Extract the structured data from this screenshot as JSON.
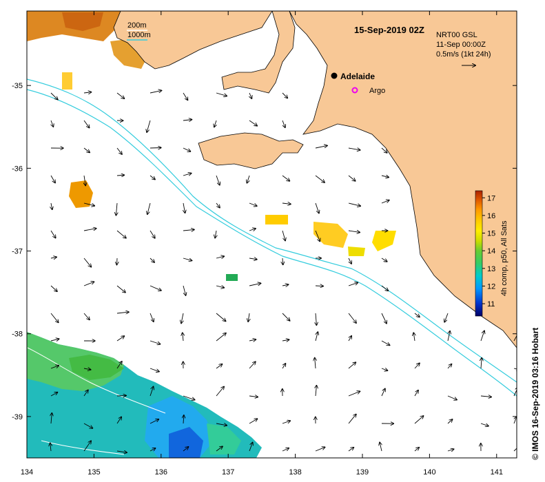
{
  "map": {
    "title": "15-Sep-2019 02Z",
    "product": "NRT00 GSL",
    "current_time": "11-Sep 00:00Z",
    "vector_scale": "0.5m/s (1kt 24h)",
    "credit": "© IMOS 16-Sep-2019 03:16 Hobart",
    "bathymetry_legend": {
      "contour_200_label": "200m",
      "contour_1000_label": "1000m",
      "contour_200_color": "#ffffff",
      "contour_1000_color": "#33ccdd"
    },
    "land_color": "#f8c896",
    "places": [
      {
        "name": "Adelaide",
        "lon": 138.6,
        "lat": -34.9,
        "marker": "filled-dot"
      },
      {
        "name": "Argo",
        "lon": 138.85,
        "lat": -35.09,
        "marker": "magenta-ring"
      }
    ],
    "x_axis": {
      "range": [
        134,
        141.3
      ],
      "ticks": [
        "134",
        "135",
        "136",
        "137",
        "138",
        "139",
        "140",
        "141"
      ]
    },
    "y_axis": {
      "range": [
        -39.5,
        -34.1
      ],
      "ticks": [
        "-35",
        "-36",
        "-37",
        "-38",
        "-39"
      ]
    },
    "colorbar": {
      "label": "4h comp, p50, All Sats",
      "range": [
        10.3,
        17.4
      ],
      "ticks": [
        "11",
        "12",
        "13",
        "14",
        "15",
        "16",
        "17"
      ],
      "colors": [
        "#000066",
        "#0033cc",
        "#0099ff",
        "#00cccc",
        "#33cc66",
        "#66cc33",
        "#ccdd00",
        "#ffee00",
        "#ffcc00",
        "#ff9900",
        "#dd5500",
        "#aa2200"
      ]
    }
  }
}
